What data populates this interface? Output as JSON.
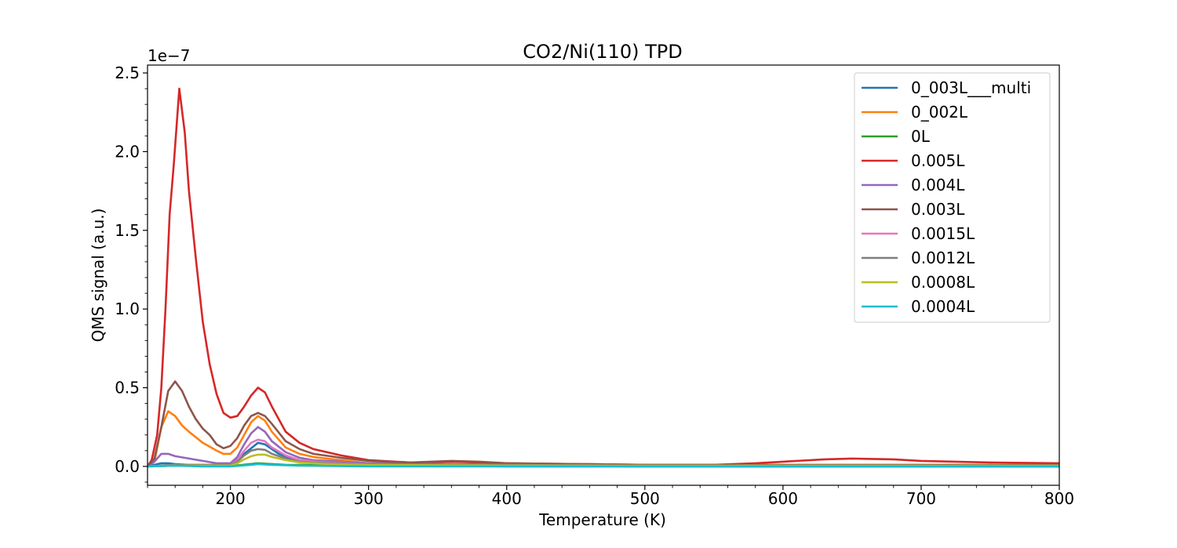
{
  "chart_data": {
    "type": "line",
    "title": "CO2/Ni(110) TPD",
    "xlabel": "Temperature (K)",
    "ylabel": "QMS signal (a.u.)",
    "y_offset_label": "1e−7",
    "xlim": [
      140,
      800
    ],
    "ylim": [
      -1.2e-08,
      2.55e-07
    ],
    "x_ticks": [
      200,
      300,
      400,
      500,
      600,
      700,
      800
    ],
    "x_tick_labels": [
      "200",
      "300",
      "400",
      "500",
      "600",
      "700",
      "800"
    ],
    "y_ticks": [
      0,
      5e-08,
      1e-07,
      1.5e-07,
      2e-07,
      2.5e-07
    ],
    "y_tick_labels": [
      "0.0",
      "0.5",
      "1.0",
      "1.5",
      "2.0",
      "2.5"
    ],
    "grid": false,
    "legend_position": "top-right",
    "series": [
      {
        "name": "0_003L___multi",
        "color": "#1f77b4",
        "points": [
          [
            140,
            0
          ],
          [
            145,
            1e-09
          ],
          [
            150,
            2e-09
          ],
          [
            155,
            2e-09
          ],
          [
            160,
            1.5e-09
          ],
          [
            170,
            1e-09
          ],
          [
            180,
            5e-10
          ],
          [
            200,
            5e-10
          ],
          [
            210,
            8e-09
          ],
          [
            220,
            1.5e-08
          ],
          [
            225,
            1.4e-08
          ],
          [
            235,
            8e-09
          ],
          [
            250,
            3e-09
          ],
          [
            270,
            1.5e-09
          ],
          [
            300,
            1e-09
          ],
          [
            400,
            5e-10
          ],
          [
            500,
            0
          ],
          [
            600,
            0
          ],
          [
            700,
            0
          ],
          [
            800,
            0
          ]
        ]
      },
      {
        "name": "0_002L",
        "color": "#ff7f0e",
        "points": [
          [
            140,
            0
          ],
          [
            145,
            3e-09
          ],
          [
            150,
            2.5e-08
          ],
          [
            155,
            3.5e-08
          ],
          [
            160,
            3.2e-08
          ],
          [
            165,
            2.6e-08
          ],
          [
            170,
            2.2e-08
          ],
          [
            180,
            1.5e-08
          ],
          [
            190,
            1e-08
          ],
          [
            195,
            8e-09
          ],
          [
            200,
            8e-09
          ],
          [
            205,
            1.2e-08
          ],
          [
            210,
            2e-08
          ],
          [
            215,
            2.8e-08
          ],
          [
            220,
            3.2e-08
          ],
          [
            225,
            2.9e-08
          ],
          [
            230,
            2.2e-08
          ],
          [
            240,
            1.2e-08
          ],
          [
            250,
            8e-09
          ],
          [
            260,
            6e-09
          ],
          [
            280,
            4e-09
          ],
          [
            300,
            2e-09
          ],
          [
            350,
            1.5e-09
          ],
          [
            400,
            1e-09
          ],
          [
            500,
            5e-10
          ],
          [
            600,
            5e-10
          ],
          [
            700,
            5e-10
          ],
          [
            800,
            5e-10
          ]
        ]
      },
      {
        "name": "0L",
        "color": "#2ca02c",
        "points": [
          [
            140,
            0
          ],
          [
            160,
            5e-10
          ],
          [
            180,
            3e-10
          ],
          [
            200,
            2e-10
          ],
          [
            220,
            2e-09
          ],
          [
            240,
            1e-09
          ],
          [
            300,
            5e-10
          ],
          [
            400,
            0
          ],
          [
            500,
            0
          ],
          [
            600,
            0
          ],
          [
            700,
            0
          ],
          [
            800,
            0
          ]
        ]
      },
      {
        "name": "0.005L",
        "color": "#d62728",
        "points": [
          [
            140,
            0
          ],
          [
            143,
            4e-09
          ],
          [
            147,
            2e-08
          ],
          [
            150,
            5e-08
          ],
          [
            153,
            1e-07
          ],
          [
            156,
            1.6e-07
          ],
          [
            159,
            1.92e-07
          ],
          [
            163,
            2.4e-07
          ],
          [
            167,
            2.12e-07
          ],
          [
            170,
            1.75e-07
          ],
          [
            175,
            1.32e-07
          ],
          [
            180,
            9.2e-08
          ],
          [
            185,
            6.5e-08
          ],
          [
            190,
            4.6e-08
          ],
          [
            195,
            3.4e-08
          ],
          [
            200,
            3.1e-08
          ],
          [
            205,
            3.2e-08
          ],
          [
            210,
            3.8e-08
          ],
          [
            215,
            4.5e-08
          ],
          [
            220,
            5e-08
          ],
          [
            225,
            4.7e-08
          ],
          [
            230,
            3.8e-08
          ],
          [
            235,
            3e-08
          ],
          [
            240,
            2.2e-08
          ],
          [
            250,
            1.5e-08
          ],
          [
            260,
            1.1e-08
          ],
          [
            280,
            7e-09
          ],
          [
            300,
            4e-09
          ],
          [
            330,
            2.5e-09
          ],
          [
            360,
            3e-09
          ],
          [
            380,
            2.5e-09
          ],
          [
            400,
            2e-09
          ],
          [
            450,
            1.5e-09
          ],
          [
            500,
            1e-09
          ],
          [
            550,
            1e-09
          ],
          [
            580,
            2e-09
          ],
          [
            600,
            3e-09
          ],
          [
            630,
            4.5e-09
          ],
          [
            650,
            5e-09
          ],
          [
            680,
            4.5e-09
          ],
          [
            700,
            3.5e-09
          ],
          [
            750,
            2.5e-09
          ],
          [
            800,
            2e-09
          ]
        ]
      },
      {
        "name": "0.004L",
        "color": "#9467bd",
        "points": [
          [
            140,
            0
          ],
          [
            145,
            3e-09
          ],
          [
            150,
            8e-09
          ],
          [
            155,
            8e-09
          ],
          [
            160,
            6.5e-09
          ],
          [
            170,
            5e-09
          ],
          [
            180,
            3.5e-09
          ],
          [
            190,
            2e-09
          ],
          [
            200,
            2e-09
          ],
          [
            205,
            6e-09
          ],
          [
            210,
            1.4e-08
          ],
          [
            215,
            2.1e-08
          ],
          [
            220,
            2.5e-08
          ],
          [
            225,
            2.2e-08
          ],
          [
            230,
            1.6e-08
          ],
          [
            240,
            9e-09
          ],
          [
            250,
            5.5e-09
          ],
          [
            260,
            4e-09
          ],
          [
            280,
            3e-09
          ],
          [
            300,
            2e-09
          ],
          [
            400,
            1e-09
          ],
          [
            500,
            5e-10
          ],
          [
            600,
            5e-10
          ],
          [
            700,
            5e-10
          ],
          [
            800,
            5e-10
          ]
        ]
      },
      {
        "name": "0.003L",
        "color": "#8c564b",
        "points": [
          [
            140,
            0
          ],
          [
            145,
            5e-09
          ],
          [
            150,
            2.5e-08
          ],
          [
            155,
            4.8e-08
          ],
          [
            160,
            5.4e-08
          ],
          [
            165,
            4.8e-08
          ],
          [
            170,
            3.8e-08
          ],
          [
            175,
            3e-08
          ],
          [
            180,
            2.4e-08
          ],
          [
            185,
            2e-08
          ],
          [
            190,
            1.4e-08
          ],
          [
            195,
            1.15e-08
          ],
          [
            200,
            1.3e-08
          ],
          [
            205,
            1.8e-08
          ],
          [
            210,
            2.6e-08
          ],
          [
            215,
            3.2e-08
          ],
          [
            220,
            3.4e-08
          ],
          [
            225,
            3.2e-08
          ],
          [
            230,
            2.7e-08
          ],
          [
            240,
            1.6e-08
          ],
          [
            250,
            1.1e-08
          ],
          [
            260,
            8e-09
          ],
          [
            280,
            5.5e-09
          ],
          [
            300,
            3.5e-09
          ],
          [
            330,
            2.5e-09
          ],
          [
            360,
            3.5e-09
          ],
          [
            380,
            3e-09
          ],
          [
            400,
            2e-09
          ],
          [
            450,
            1.5e-09
          ],
          [
            500,
            1e-09
          ],
          [
            600,
            1e-09
          ],
          [
            700,
            1e-09
          ],
          [
            800,
            1e-09
          ]
        ]
      },
      {
        "name": "0.0015L",
        "color": "#e377c2",
        "points": [
          [
            140,
            0
          ],
          [
            160,
            1e-09
          ],
          [
            180,
            1e-09
          ],
          [
            200,
            1e-09
          ],
          [
            205,
            4e-09
          ],
          [
            210,
            1e-08
          ],
          [
            215,
            1.5e-08
          ],
          [
            220,
            1.7e-08
          ],
          [
            225,
            1.6e-08
          ],
          [
            230,
            1.2e-08
          ],
          [
            240,
            7e-09
          ],
          [
            250,
            4e-09
          ],
          [
            270,
            2.5e-09
          ],
          [
            300,
            1.5e-09
          ],
          [
            400,
            1e-09
          ],
          [
            500,
            5e-10
          ],
          [
            600,
            5e-10
          ],
          [
            700,
            5e-10
          ],
          [
            800,
            5e-10
          ]
        ]
      },
      {
        "name": "0.0012L",
        "color": "#7f7f7f",
        "points": [
          [
            140,
            0
          ],
          [
            160,
            1e-09
          ],
          [
            180,
            1e-09
          ],
          [
            200,
            1e-09
          ],
          [
            205,
            3e-09
          ],
          [
            210,
            7e-09
          ],
          [
            215,
            1e-08
          ],
          [
            220,
            1.1e-08
          ],
          [
            225,
            1.05e-08
          ],
          [
            230,
            8e-09
          ],
          [
            240,
            5e-09
          ],
          [
            250,
            3e-09
          ],
          [
            270,
            2e-09
          ],
          [
            300,
            1.5e-09
          ],
          [
            400,
            1e-09
          ],
          [
            500,
            5e-10
          ],
          [
            600,
            5e-10
          ],
          [
            700,
            5e-10
          ],
          [
            800,
            5e-10
          ]
        ]
      },
      {
        "name": "0.0008L",
        "color": "#bcbd22",
        "points": [
          [
            140,
            0
          ],
          [
            160,
            5e-10
          ],
          [
            180,
            5e-10
          ],
          [
            200,
            5e-10
          ],
          [
            205,
            2e-09
          ],
          [
            210,
            4.5e-09
          ],
          [
            215,
            6.5e-09
          ],
          [
            220,
            7.5e-09
          ],
          [
            225,
            7.5e-09
          ],
          [
            230,
            6e-09
          ],
          [
            240,
            4e-09
          ],
          [
            250,
            2.5e-09
          ],
          [
            270,
            1.5e-09
          ],
          [
            300,
            1e-09
          ],
          [
            400,
            5e-10
          ],
          [
            500,
            5e-10
          ],
          [
            600,
            5e-10
          ],
          [
            700,
            5e-10
          ],
          [
            800,
            5e-10
          ]
        ]
      },
      {
        "name": "0.0004L",
        "color": "#17becf",
        "points": [
          [
            140,
            0
          ],
          [
            160,
            5e-10
          ],
          [
            180,
            0
          ],
          [
            200,
            0
          ],
          [
            215,
            1e-09
          ],
          [
            220,
            1.5e-09
          ],
          [
            230,
            1e-09
          ],
          [
            250,
            5e-10
          ],
          [
            300,
            0
          ],
          [
            400,
            0
          ],
          [
            500,
            0
          ],
          [
            600,
            0
          ],
          [
            700,
            0
          ],
          [
            800,
            0
          ]
        ]
      }
    ]
  }
}
